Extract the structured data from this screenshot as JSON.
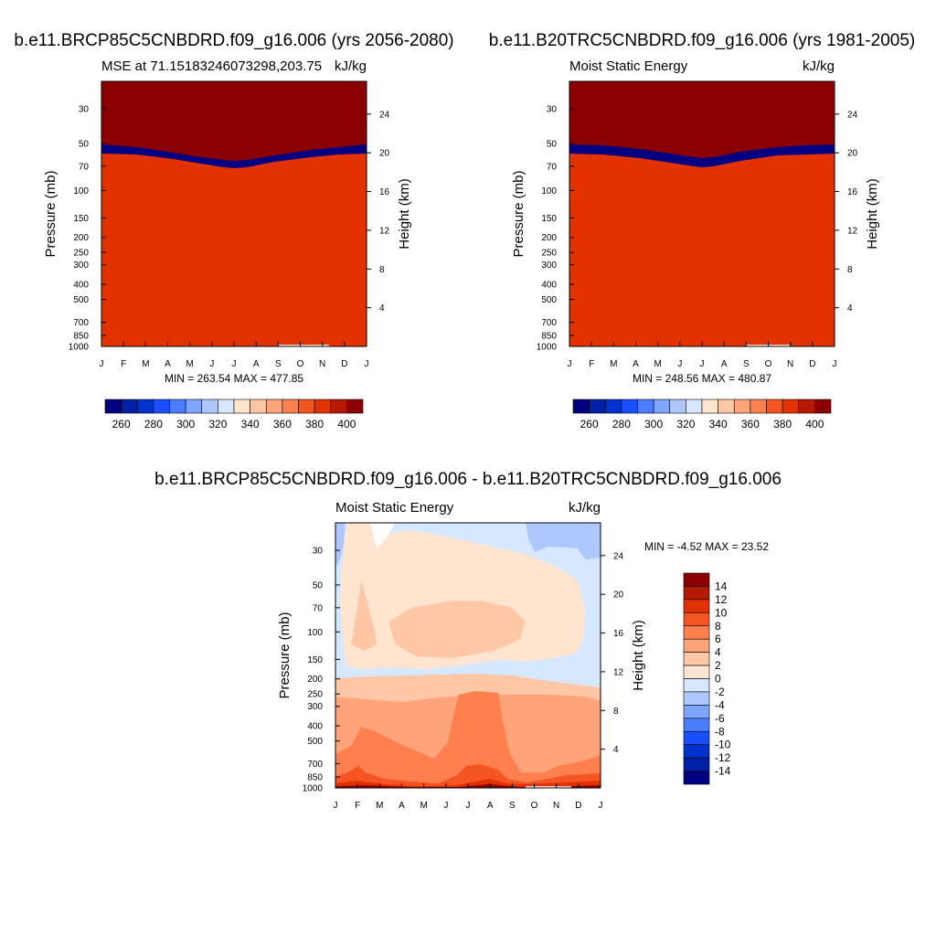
{
  "chart_data": [
    {
      "type": "contour",
      "title": "b.e11.BRCP85C5CNBDRD.f09_g16.006 (yrs 2056-2080)",
      "subtitle_left": "MSE at 71.15183246073298,203.75",
      "units": "kJ/kg",
      "ylabel_left": "Pressure (mb)",
      "ylabel_right": "Height (km)",
      "x_ticks": [
        "J",
        "F",
        "M",
        "A",
        "M",
        "J",
        "J",
        "A",
        "S",
        "O",
        "N",
        "D",
        "J"
      ],
      "pressure_ticks": [
        30,
        50,
        70,
        100,
        150,
        200,
        250,
        300,
        400,
        500,
        700,
        850,
        1000
      ],
      "height_ticks": [
        4,
        8,
        12,
        16,
        20,
        24
      ],
      "ylim_mb": [
        1000,
        20
      ],
      "stats": "MIN = 263.54 MAX = 477.85",
      "colorbar_labels": [
        "260",
        "280",
        "300",
        "320",
        "340",
        "360",
        "380",
        "400"
      ],
      "levels": [
        250,
        260,
        270,
        280,
        290,
        300,
        310,
        320,
        330,
        340,
        350,
        360,
        370,
        380,
        390,
        400
      ],
      "colors": [
        "#000080",
        "#0020a8",
        "#0033cc",
        "#1a4fff",
        "#4a7dff",
        "#7ea6ff",
        "#aec8ff",
        "#d6e8ff",
        "#ffe4d0",
        "#ffc7a6",
        "#ffa37a",
        "#ff7f4f",
        "#f55522",
        "#e23200",
        "#b41a00",
        "#8b0000"
      ]
    },
    {
      "type": "contour",
      "title": "b.e11.B20TRC5CNBDRD.f09_g16.006 (yrs 1981-2005)",
      "subtitle_left": "Moist Static Energy",
      "units": "kJ/kg",
      "ylabel_left": "Pressure (mb)",
      "ylabel_right": "Height (km)",
      "x_ticks": [
        "J",
        "F",
        "M",
        "A",
        "M",
        "J",
        "J",
        "A",
        "S",
        "O",
        "N",
        "D",
        "J"
      ],
      "pressure_ticks": [
        30,
        50,
        70,
        100,
        150,
        200,
        250,
        300,
        400,
        500,
        700,
        850,
        1000
      ],
      "height_ticks": [
        4,
        8,
        12,
        16,
        20,
        24
      ],
      "ylim_mb": [
        1000,
        20
      ],
      "stats": "MIN = 248.56 MAX = 480.87",
      "colorbar_labels": [
        "260",
        "280",
        "300",
        "320",
        "340",
        "360",
        "380",
        "400"
      ],
      "levels": [
        250,
        260,
        270,
        280,
        290,
        300,
        310,
        320,
        330,
        340,
        350,
        360,
        370,
        380,
        390,
        400
      ],
      "colors": [
        "#000080",
        "#0020a8",
        "#0033cc",
        "#1a4fff",
        "#4a7dff",
        "#7ea6ff",
        "#aec8ff",
        "#d6e8ff",
        "#ffe4d0",
        "#ffc7a6",
        "#ffa37a",
        "#ff7f4f",
        "#f55522",
        "#e23200",
        "#b41a00",
        "#8b0000"
      ]
    },
    {
      "type": "contour",
      "title": "b.e11.BRCP85C5CNBDRD.f09_g16.006 - b.e11.B20TRC5CNBDRD.f09_g16.006",
      "subtitle_left": "Moist Static Energy",
      "units": "kJ/kg",
      "ylabel_left": "Pressure (mb)",
      "ylabel_right": "Height (km)",
      "x_ticks": [
        "J",
        "F",
        "M",
        "A",
        "M",
        "J",
        "J",
        "A",
        "S",
        "O",
        "N",
        "D",
        "J"
      ],
      "pressure_ticks": [
        30,
        50,
        70,
        100,
        150,
        200,
        250,
        300,
        400,
        500,
        700,
        850,
        1000
      ],
      "height_ticks": [
        4,
        8,
        12,
        16,
        20,
        24
      ],
      "ylim_mb": [
        1000,
        20
      ],
      "stats": "MIN =  -4.52 MAX =  23.52",
      "colorbar_labels": [
        "14",
        "12",
        "10",
        "8",
        "6",
        "4",
        "2",
        "0",
        "-2",
        "-4",
        "-6",
        "-8",
        "-10",
        "-12",
        "-14"
      ],
      "levels": [
        -16,
        -14,
        -12,
        -10,
        -8,
        -6,
        -4,
        -2,
        0,
        2,
        4,
        6,
        8,
        10,
        12,
        14
      ],
      "colors": [
        "#000080",
        "#0020a8",
        "#0033cc",
        "#1a4fff",
        "#4a7dff",
        "#7ea6ff",
        "#aec8ff",
        "#d6e8ff",
        "#ffe4d0",
        "#ffc7a6",
        "#ffa37a",
        "#ff7f4f",
        "#f55522",
        "#e23200",
        "#b41a00",
        "#8b0000"
      ]
    }
  ]
}
